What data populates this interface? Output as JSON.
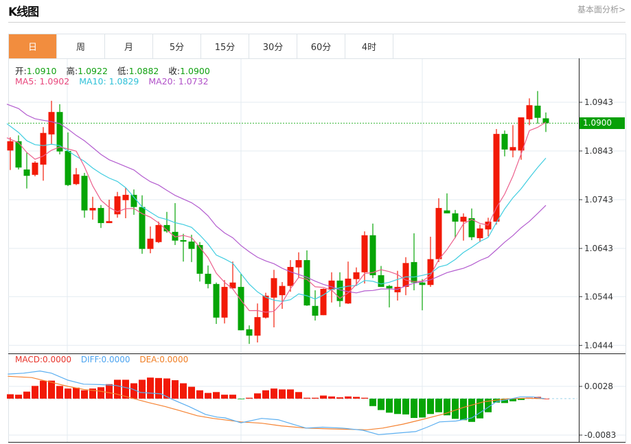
{
  "header": {
    "title": "K线图",
    "link": "基本面分析>"
  },
  "tabs": [
    {
      "label": "日",
      "active": true
    },
    {
      "label": "周"
    },
    {
      "label": "月"
    },
    {
      "label": "5分"
    },
    {
      "label": "15分"
    },
    {
      "label": "30分"
    },
    {
      "label": "60分"
    },
    {
      "label": "4时"
    }
  ],
  "ohlc": {
    "open_label": "开:",
    "open": "1.0910",
    "high_label": "高:",
    "high": "1.0922",
    "low_label": "低:",
    "low": "1.0882",
    "close_label": "收:",
    "close": "1.0900"
  },
  "ma_legend": {
    "ma5": "MA5: 1.0902",
    "ma10": "MA10: 1.0829",
    "ma20": "MA20: 1.0732"
  },
  "macd_legend": {
    "macd": "MACD:0.0000",
    "diff": "DIFF:0.0000",
    "dea": "DEA:0.0000"
  },
  "current_price": "1.0900",
  "colors": {
    "up": "#f21a07",
    "down": "#06a506",
    "ma5": "#ec5f8c",
    "ma10": "#3fcde0",
    "ma20": "#b35ccf",
    "diff": "#5aaef0",
    "dea": "#f58231",
    "accent": "#f28d3e"
  },
  "chart_data": {
    "type": "candlestick",
    "title": "K线图",
    "price_axis": {
      "ticks": [
        "1.0943",
        "1.0843",
        "1.0743",
        "1.0643",
        "1.0544",
        "1.0444"
      ],
      "range": [
        1.0433,
        1.099
      ]
    },
    "macd_axis": {
      "ticks": [
        "0.0028",
        "-0.0083"
      ]
    },
    "candles": [
      [
        1.0844,
        1.0871,
        1.0804,
        1.0863
      ],
      [
        1.0863,
        1.0875,
        1.0805,
        1.0809
      ],
      [
        1.0805,
        1.084,
        1.0766,
        1.0792
      ],
      [
        1.0794,
        1.0822,
        1.0791,
        1.0819
      ],
      [
        1.0815,
        1.0892,
        1.0782,
        1.088
      ],
      [
        1.0877,
        1.0946,
        1.0856,
        1.0923
      ],
      [
        1.0923,
        1.0939,
        1.0836,
        1.0842
      ],
      [
        1.0843,
        1.0881,
        1.0771,
        1.0773
      ],
      [
        1.0775,
        1.0808,
        1.0773,
        1.0795
      ],
      [
        1.0792,
        1.0798,
        1.0706,
        1.0721
      ],
      [
        1.0721,
        1.0749,
        1.0702,
        1.0726
      ],
      [
        1.0726,
        1.0732,
        1.0685,
        1.0695
      ],
      [
        1.0695,
        1.0743,
        1.0695,
        1.0699
      ],
      [
        1.0713,
        1.0759,
        1.0706,
        1.075
      ],
      [
        1.0742,
        1.0768,
        1.0705,
        1.0753
      ],
      [
        1.0753,
        1.0764,
        1.0712,
        1.0728
      ],
      [
        1.0728,
        1.0752,
        1.0632,
        1.0642
      ],
      [
        1.0642,
        1.0688,
        1.0633,
        1.0663
      ],
      [
        1.0656,
        1.0698,
        1.0654,
        1.0691
      ],
      [
        1.0691,
        1.0718,
        1.0675,
        1.0678
      ],
      [
        1.0677,
        1.0736,
        1.065,
        1.0659
      ],
      [
        1.066,
        1.0673,
        1.0616,
        1.0657
      ],
      [
        1.0657,
        1.0671,
        1.0615,
        1.0642
      ],
      [
        1.065,
        1.0656,
        1.0575,
        1.0591
      ],
      [
        1.0591,
        1.0608,
        1.0561,
        1.057
      ],
      [
        1.057,
        1.0573,
        1.0488,
        1.0501
      ],
      [
        1.0501,
        1.0578,
        1.0489,
        1.0564
      ],
      [
        1.0561,
        1.0616,
        1.0561,
        1.0573
      ],
      [
        1.0564,
        1.0591,
        1.0475,
        1.0475
      ],
      [
        1.0477,
        1.0485,
        1.0447,
        1.0464
      ],
      [
        1.0464,
        1.053,
        1.045,
        1.0502
      ],
      [
        1.0501,
        1.0552,
        1.0499,
        1.0546
      ],
      [
        1.0542,
        1.0599,
        1.0481,
        1.0582
      ],
      [
        1.0547,
        1.0574,
        1.0519,
        1.0566
      ],
      [
        1.0566,
        1.0619,
        1.0554,
        1.0605
      ],
      [
        1.0604,
        1.0635,
        1.0582,
        1.0619
      ],
      [
        1.0619,
        1.0639,
        1.0525,
        1.0526
      ],
      [
        1.0525,
        1.0557,
        1.0495,
        1.0505
      ],
      [
        1.0506,
        1.0561,
        1.0506,
        1.056
      ],
      [
        1.0558,
        1.0594,
        1.0532,
        1.0577
      ],
      [
        1.0577,
        1.0594,
        1.0523,
        1.0535
      ],
      [
        1.053,
        1.0616,
        1.0529,
        1.0581
      ],
      [
        1.058,
        1.0604,
        1.0566,
        1.0594
      ],
      [
        1.0594,
        1.0678,
        1.0571,
        1.067
      ],
      [
        1.067,
        1.0694,
        1.0582,
        1.0588
      ],
      [
        1.0588,
        1.0607,
        1.0564,
        1.0564
      ],
      [
        1.0566,
        1.0568,
        1.0522,
        1.0561
      ],
      [
        1.0553,
        1.0597,
        1.0536,
        1.0564
      ],
      [
        1.0564,
        1.0625,
        1.0547,
        1.0613
      ],
      [
        1.0615,
        1.0674,
        1.0557,
        1.0573
      ],
      [
        1.0573,
        1.058,
        1.0516,
        1.0568
      ],
      [
        1.0568,
        1.0667,
        1.0564,
        1.0621
      ],
      [
        1.0621,
        1.0746,
        1.0615,
        1.0726
      ],
      [
        1.0721,
        1.0756,
        1.0715,
        1.0715
      ],
      [
        1.0715,
        1.0722,
        1.0664,
        1.0698
      ],
      [
        1.0698,
        1.0715,
        1.0659,
        1.0708
      ],
      [
        1.0705,
        1.0725,
        1.066,
        1.0666
      ],
      [
        1.0664,
        1.0692,
        1.0656,
        1.0684
      ],
      [
        1.0682,
        1.0706,
        1.0668,
        1.0698
      ],
      [
        1.0698,
        1.0888,
        1.0692,
        1.0878
      ],
      [
        1.0878,
        1.0885,
        1.0832,
        1.0846
      ],
      [
        1.0844,
        1.0896,
        1.083,
        1.0851
      ],
      [
        1.0844,
        1.0912,
        1.0825,
        1.0912
      ],
      [
        1.0908,
        1.0951,
        1.0896,
        1.0937
      ],
      [
        1.0936,
        1.0966,
        1.0899,
        1.0911
      ],
      [
        1.091,
        1.0922,
        1.0882,
        1.09
      ]
    ],
    "ma_seed": {
      "ma5": [
        1.087,
        1.086,
        1.084,
        1.0826
      ],
      "ma10": [
        1.0899,
        1.0881,
        1.0864,
        1.0856,
        1.0854,
        1.0857,
        1.0854,
        1.0843,
        1.0832
      ],
      "ma20": [
        1.0939,
        1.093,
        1.0917,
        1.0909,
        1.0906,
        1.0903,
        1.0899,
        1.0888,
        1.0875,
        1.0864,
        1.085,
        1.0836,
        1.0825,
        1.0818,
        1.0811,
        1.0804,
        1.0791,
        1.078,
        1.0773
      ]
    },
    "macd": [
      0.001,
      0.0009,
      0.0016,
      0.0029,
      0.0041,
      0.0041,
      0.0029,
      0.0023,
      0.0025,
      0.0019,
      0.0023,
      0.0026,
      0.0033,
      0.0043,
      0.0043,
      0.0035,
      0.0043,
      0.0048,
      0.0047,
      0.0046,
      0.0042,
      0.0035,
      0.0027,
      0.0019,
      0.0013,
      0.0015,
      0.0009,
      0.0009,
      -0.0001,
      0.0002,
      0.0012,
      0.0019,
      0.0023,
      0.0021,
      0.0021,
      0.0015,
      0.0002,
      0.0002,
      0.0007,
      0.0005,
      0.0003,
      0.0005,
      0.0004,
      0.0002,
      -0.0017,
      -0.0026,
      -0.0032,
      -0.0035,
      -0.0036,
      -0.0044,
      -0.0043,
      -0.0035,
      -0.0031,
      -0.0038,
      -0.0046,
      -0.0049,
      -0.0053,
      -0.0045,
      -0.0031,
      -0.0009,
      -0.001,
      -0.0006,
      -0.0003,
      0.0002,
      0.0004,
      0.0
    ],
    "diff": [
      [
        -0.3,
        0.0056
      ],
      [
        1.6,
        0.0058
      ],
      [
        3.6,
        0.0063
      ],
      [
        5.0,
        0.0058
      ],
      [
        7.0,
        0.0042
      ],
      [
        8.9,
        0.0033
      ],
      [
        10.9,
        0.0032
      ],
      [
        12.8,
        0.003
      ],
      [
        14.8,
        0.0022
      ],
      [
        15.8,
        0.0014
      ],
      [
        18.3,
        0.0011
      ],
      [
        19.7,
        -0.0002
      ],
      [
        21.7,
        -0.0018
      ],
      [
        23.7,
        -0.0036
      ],
      [
        25.1,
        -0.0042
      ],
      [
        26.1,
        -0.0044
      ],
      [
        28.0,
        -0.0055
      ],
      [
        30.5,
        -0.0045
      ],
      [
        32.5,
        -0.0048
      ],
      [
        34.4,
        -0.0059
      ],
      [
        35.9,
        -0.0067
      ],
      [
        37.9,
        -0.0065
      ],
      [
        40.3,
        -0.0067
      ],
      [
        42.8,
        -0.0072
      ],
      [
        44.7,
        -0.0082
      ],
      [
        46.7,
        -0.0079
      ],
      [
        49.2,
        -0.0075
      ],
      [
        50.6,
        -0.0065
      ],
      [
        52.1,
        -0.0053
      ],
      [
        54.1,
        -0.0051
      ],
      [
        56.0,
        -0.0044
      ],
      [
        57.5,
        -0.0026
      ],
      [
        59.0,
        -0.0007
      ],
      [
        60.4,
        -0.0002
      ],
      [
        61.9,
        0.0004
      ],
      [
        63.4,
        0.0004
      ],
      [
        64.8,
        0.0
      ]
    ],
    "dea": [
      [
        -0.3,
        0.0051
      ],
      [
        2.6,
        0.0048
      ],
      [
        5.0,
        0.0037
      ],
      [
        7.0,
        0.0028
      ],
      [
        8.9,
        0.0021
      ],
      [
        10.9,
        0.0017
      ],
      [
        12.8,
        0.0011
      ],
      [
        14.8,
        0.0001
      ],
      [
        16.8,
        -0.0009
      ],
      [
        18.8,
        -0.0018
      ],
      [
        20.7,
        -0.0028
      ],
      [
        22.7,
        -0.0039
      ],
      [
        24.6,
        -0.0045
      ],
      [
        28.0,
        -0.0053
      ],
      [
        30.5,
        -0.0056
      ],
      [
        32.9,
        -0.0062
      ],
      [
        35.9,
        -0.0067
      ],
      [
        38.9,
        -0.0069
      ],
      [
        41.3,
        -0.007
      ],
      [
        43.3,
        -0.0071
      ],
      [
        45.2,
        -0.0067
      ],
      [
        47.7,
        -0.0058
      ],
      [
        50.1,
        -0.0047
      ],
      [
        52.6,
        -0.0035
      ],
      [
        55.0,
        -0.002
      ],
      [
        57.5,
        -0.0007
      ],
      [
        60.0,
        -0.0001
      ],
      [
        62.4,
        0.0001
      ],
      [
        64.8,
        0.0
      ]
    ]
  }
}
